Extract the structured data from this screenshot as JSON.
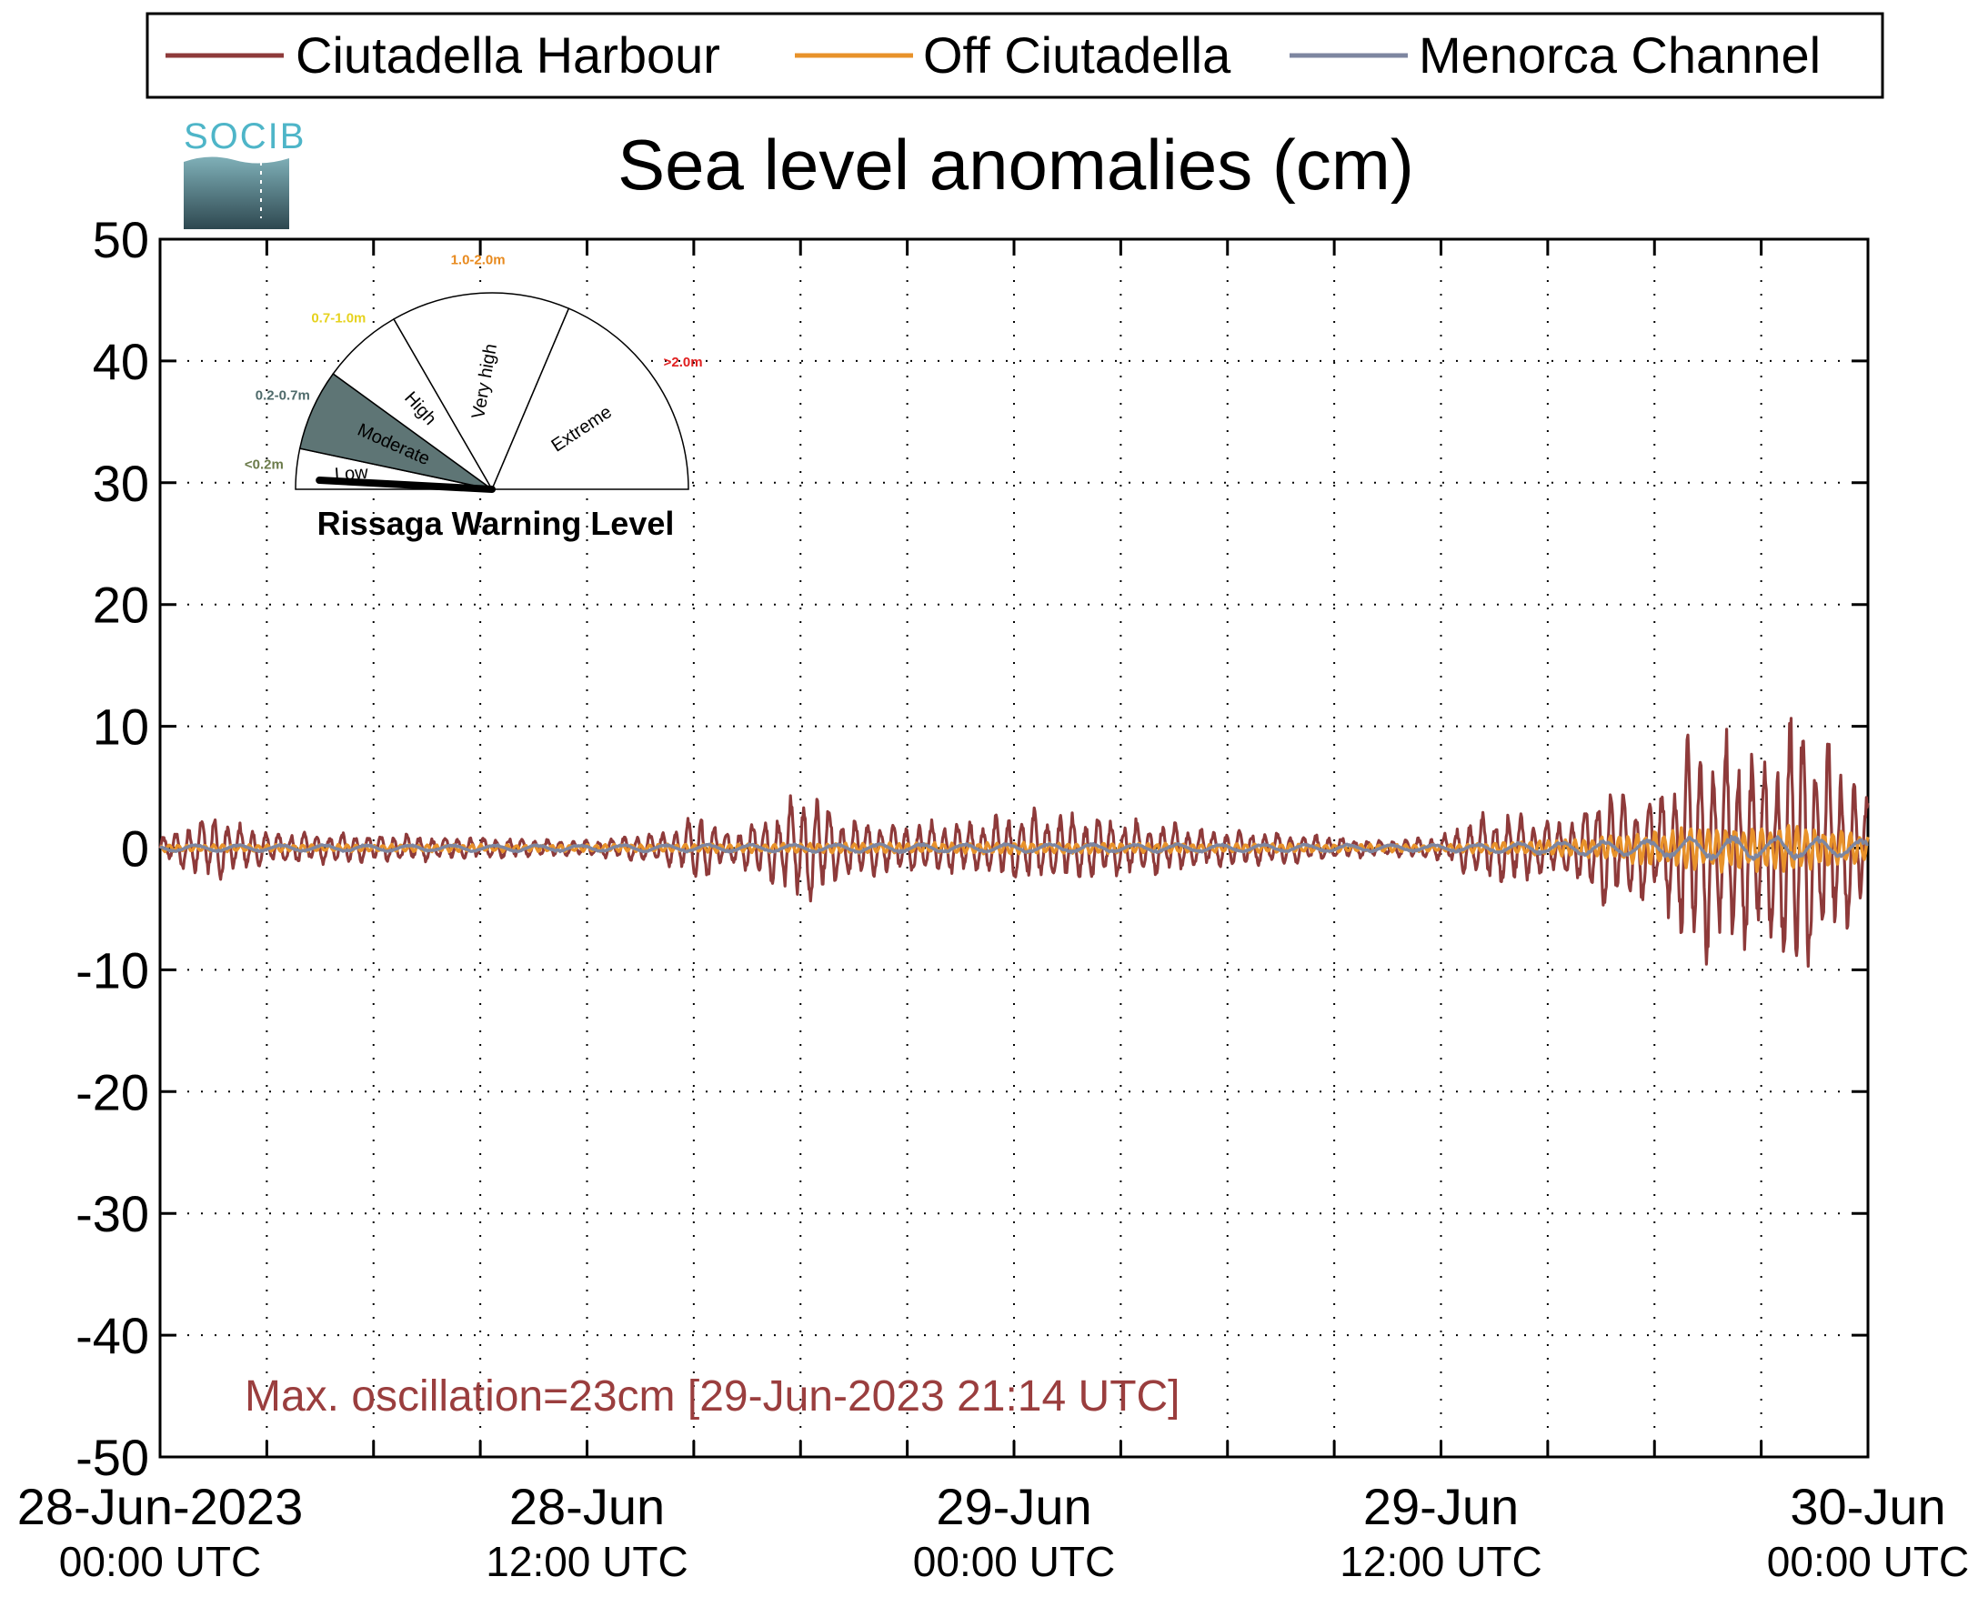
{
  "logo": {
    "text": "SOCIB"
  },
  "chart_data": {
    "type": "line",
    "title": "Sea level anomalies (cm)",
    "xlabel": "",
    "ylabel": "",
    "ylim": [
      -50,
      50
    ],
    "yticks": [
      50,
      40,
      30,
      20,
      10,
      0,
      -10,
      -20,
      -30,
      -40,
      -50
    ],
    "xlim_hours": [
      0,
      48
    ],
    "xticks": [
      {
        "line1": "28-Jun-2023",
        "line2": "00:00 UTC",
        "hour": 0
      },
      {
        "line1": "28-Jun",
        "line2": "12:00 UTC",
        "hour": 12
      },
      {
        "line1": "29-Jun",
        "line2": "00:00 UTC",
        "hour": 24
      },
      {
        "line1": "29-Jun",
        "line2": "12:00 UTC",
        "hour": 36
      },
      {
        "line1": "30-Jun",
        "line2": "00:00 UTC",
        "hour": 48
      }
    ],
    "minor_tick_hours": [
      3,
      6,
      9,
      15,
      18,
      21,
      27,
      30,
      33,
      39,
      42,
      45
    ],
    "grid": true,
    "legend_position": "top",
    "series": [
      {
        "name": "Ciutadella Harbour",
        "color": "#8e3a3a",
        "envelope": {
          "hours": [
            0,
            0.5,
            1.5,
            2.0,
            3.0,
            5.0,
            8.0,
            12.0,
            14.5,
            15.2,
            16.0,
            17.5,
            18.3,
            19.2,
            20.5,
            23.0,
            24.5,
            27.0,
            29.5,
            32.0,
            34.5,
            36.0,
            37.0,
            38.0,
            39.5,
            40.5,
            41.5,
            42.3,
            43.0,
            44.0,
            45.0,
            45.5,
            46.0,
            47.0,
            48.0
          ],
          "amplitude_cm": [
            0.8,
            1.5,
            3.0,
            2.0,
            1.4,
            1.2,
            1.0,
            0.6,
            1.5,
            3.0,
            1.2,
            3.5,
            5.0,
            2.5,
            2.0,
            2.2,
            3.0,
            2.5,
            1.5,
            1.2,
            0.6,
            1.0,
            2.5,
            3.0,
            2.0,
            5.0,
            4.5,
            5.0,
            9.0,
            9.5,
            7.0,
            10.0,
            12.0,
            8.0,
            4.0
          ]
        }
      },
      {
        "name": "Off Ciutadella",
        "color": "#e8922a",
        "envelope": {
          "hours": [
            0,
            12,
            24,
            36,
            40,
            42,
            44,
            46,
            48
          ],
          "amplitude_cm": [
            0.3,
            0.3,
            0.5,
            0.3,
            0.8,
            1.5,
            2.0,
            2.0,
            1.2
          ]
        }
      },
      {
        "name": "Menorca Channel",
        "color": "#7d86a0",
        "envelope": {
          "hours": [
            0,
            12,
            24,
            36,
            40,
            44,
            46,
            48
          ],
          "amplitude_cm": [
            0.3,
            0.3,
            0.4,
            0.3,
            0.6,
            1.0,
            1.0,
            0.7
          ]
        }
      }
    ],
    "annotation": {
      "text": "Max. oscillation=23cm [29-Jun-2023 21:14 UTC]",
      "color": "#9a3e3e"
    }
  },
  "gauge": {
    "title": "Rissaga Warning Level",
    "current_level": "Low",
    "sectors": [
      {
        "label": "Low",
        "range": "<0.2m",
        "fill": "#ffffff",
        "range_color": "#6b7b4a"
      },
      {
        "label": "Moderate",
        "range": "0.2-0.7m",
        "fill": "#5e7575",
        "range_color": "#4e6a6a"
      },
      {
        "label": "High",
        "range": "0.7-1.0m",
        "fill": "#ffffff",
        "range_color": "#e6d21e"
      },
      {
        "label": "Very high",
        "range": "1.0-2.0m",
        "fill": "#ffffff",
        "range_color": "#e88a1e"
      },
      {
        "label": "Extreme",
        "range": ">2.0m",
        "fill": "#ffffff",
        "range_color": "#e01e1e"
      }
    ]
  }
}
